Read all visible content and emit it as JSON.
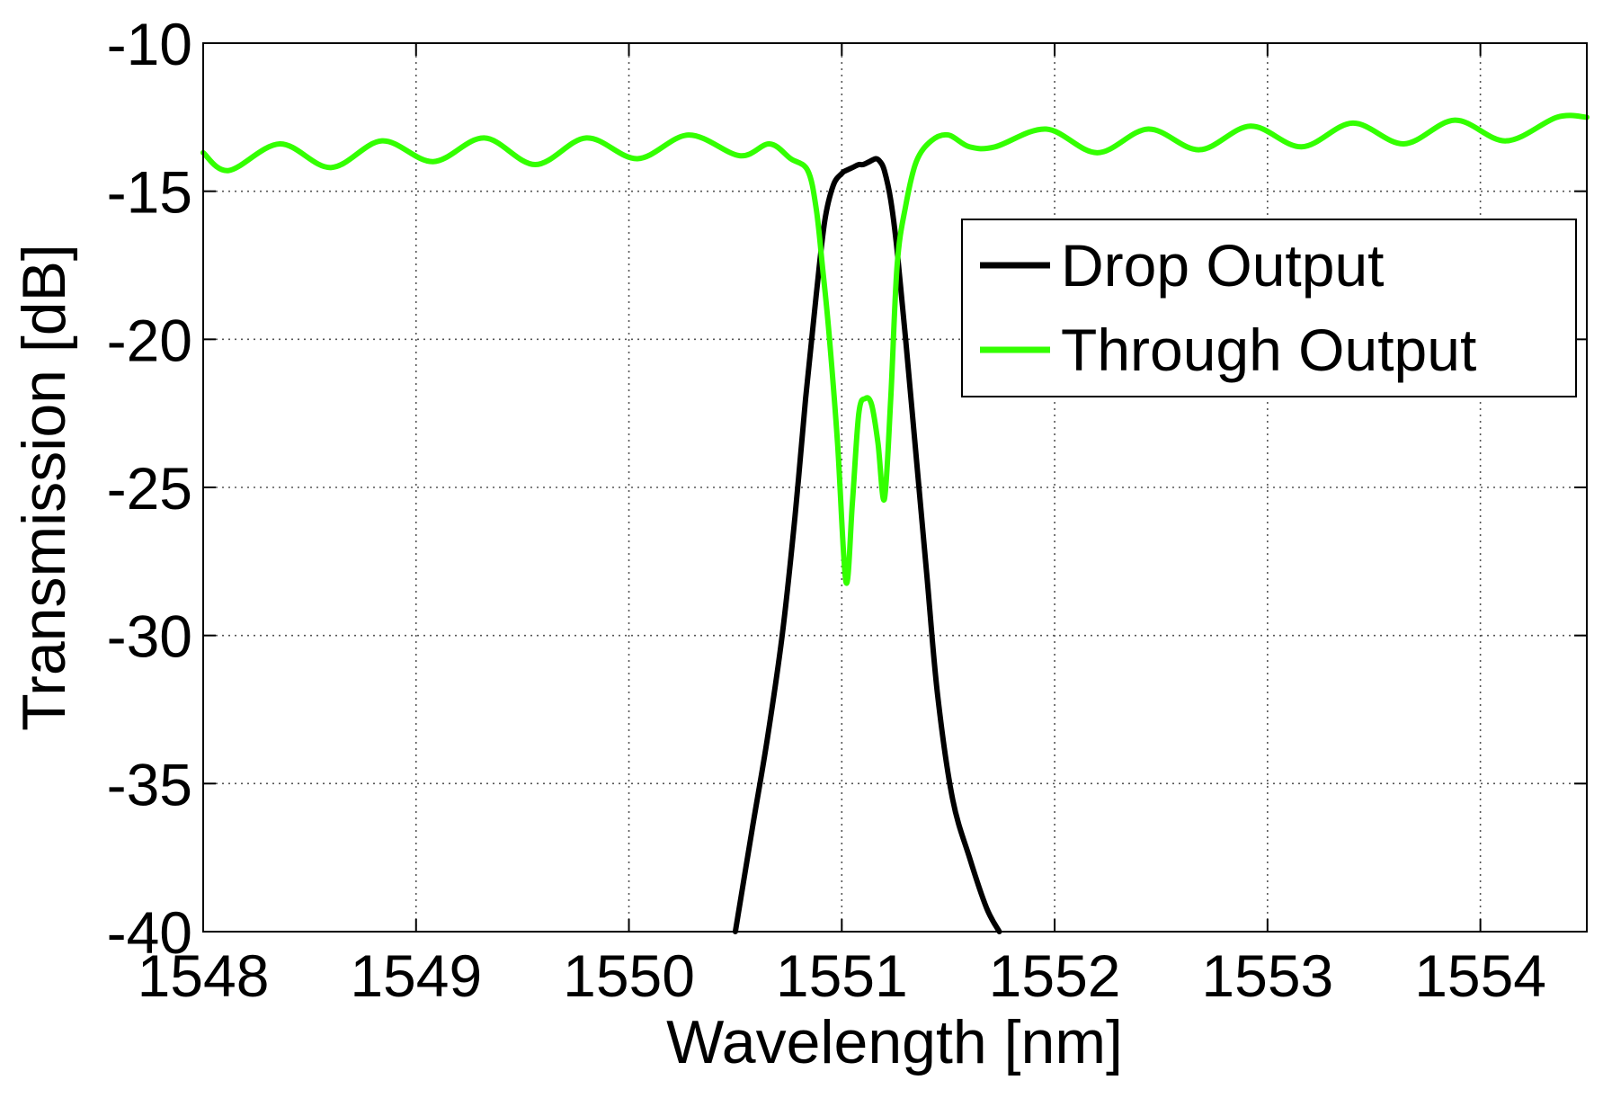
{
  "chart_data": {
    "type": "line",
    "title": "",
    "xlabel": "Wavelength [nm]",
    "ylabel": "Transmission [dB]",
    "xlim": [
      1548,
      1554.5
    ],
    "ylim": [
      -40,
      -10
    ],
    "xticks": [
      1548,
      1549,
      1550,
      1551,
      1552,
      1553,
      1554
    ],
    "yticks": [
      -10,
      -15,
      -20,
      -25,
      -30,
      -35,
      -40
    ],
    "grid": true,
    "legend_position": "upper-right",
    "series": [
      {
        "name": "Drop Output",
        "color": "#000000",
        "x": [
          1550.5,
          1550.58,
          1550.65,
          1550.72,
          1550.78,
          1550.83,
          1550.88,
          1550.92,
          1550.96,
          1551.0,
          1551.02,
          1551.05,
          1551.08,
          1551.1,
          1551.13,
          1551.16,
          1551.18,
          1551.2,
          1551.23,
          1551.26,
          1551.3,
          1551.35,
          1551.4,
          1551.45,
          1551.52,
          1551.6,
          1551.68,
          1551.74
        ],
        "y": [
          -40,
          -36.5,
          -33.5,
          -30,
          -26,
          -22,
          -18.5,
          -16,
          -14.8,
          -14.4,
          -14.3,
          -14.2,
          -14.1,
          -14.1,
          -14.0,
          -13.9,
          -14.0,
          -14.3,
          -15.3,
          -17,
          -20,
          -24,
          -28,
          -32,
          -35.5,
          -37.5,
          -39.2,
          -40
        ]
      },
      {
        "name": "Through Output",
        "color": "#33ff00",
        "x": [
          1548.0,
          1548.12,
          1548.36,
          1548.6,
          1548.84,
          1549.08,
          1549.32,
          1549.56,
          1549.8,
          1550.04,
          1550.28,
          1550.52,
          1550.66,
          1550.76,
          1550.84,
          1550.88,
          1550.91,
          1550.94,
          1550.98,
          1551.02,
          1551.05,
          1551.08,
          1551.11,
          1551.14,
          1551.17,
          1551.2,
          1551.23,
          1551.26,
          1551.3,
          1551.35,
          1551.42,
          1551.5,
          1551.6,
          1551.72,
          1551.96,
          1552.2,
          1552.44,
          1552.68,
          1552.92,
          1553.16,
          1553.4,
          1553.64,
          1553.88,
          1554.12,
          1554.36,
          1554.5
        ],
        "y": [
          -13.7,
          -14.3,
          -13.4,
          -14.2,
          -13.3,
          -14.0,
          -13.2,
          -14.1,
          -13.2,
          -13.9,
          -13.1,
          -13.8,
          -13.4,
          -13.9,
          -14.3,
          -15.6,
          -17.6,
          -19.8,
          -23.5,
          -28.2,
          -25.5,
          -22.5,
          -22.0,
          -22.2,
          -23.5,
          -25.4,
          -22.0,
          -17.5,
          -15.5,
          -14.0,
          -13.3,
          -13.1,
          -13.5,
          -13.5,
          -12.9,
          -13.7,
          -12.9,
          -13.6,
          -12.8,
          -13.5,
          -12.7,
          -13.4,
          -12.6,
          -13.3,
          -12.5,
          -12.5
        ]
      }
    ]
  }
}
